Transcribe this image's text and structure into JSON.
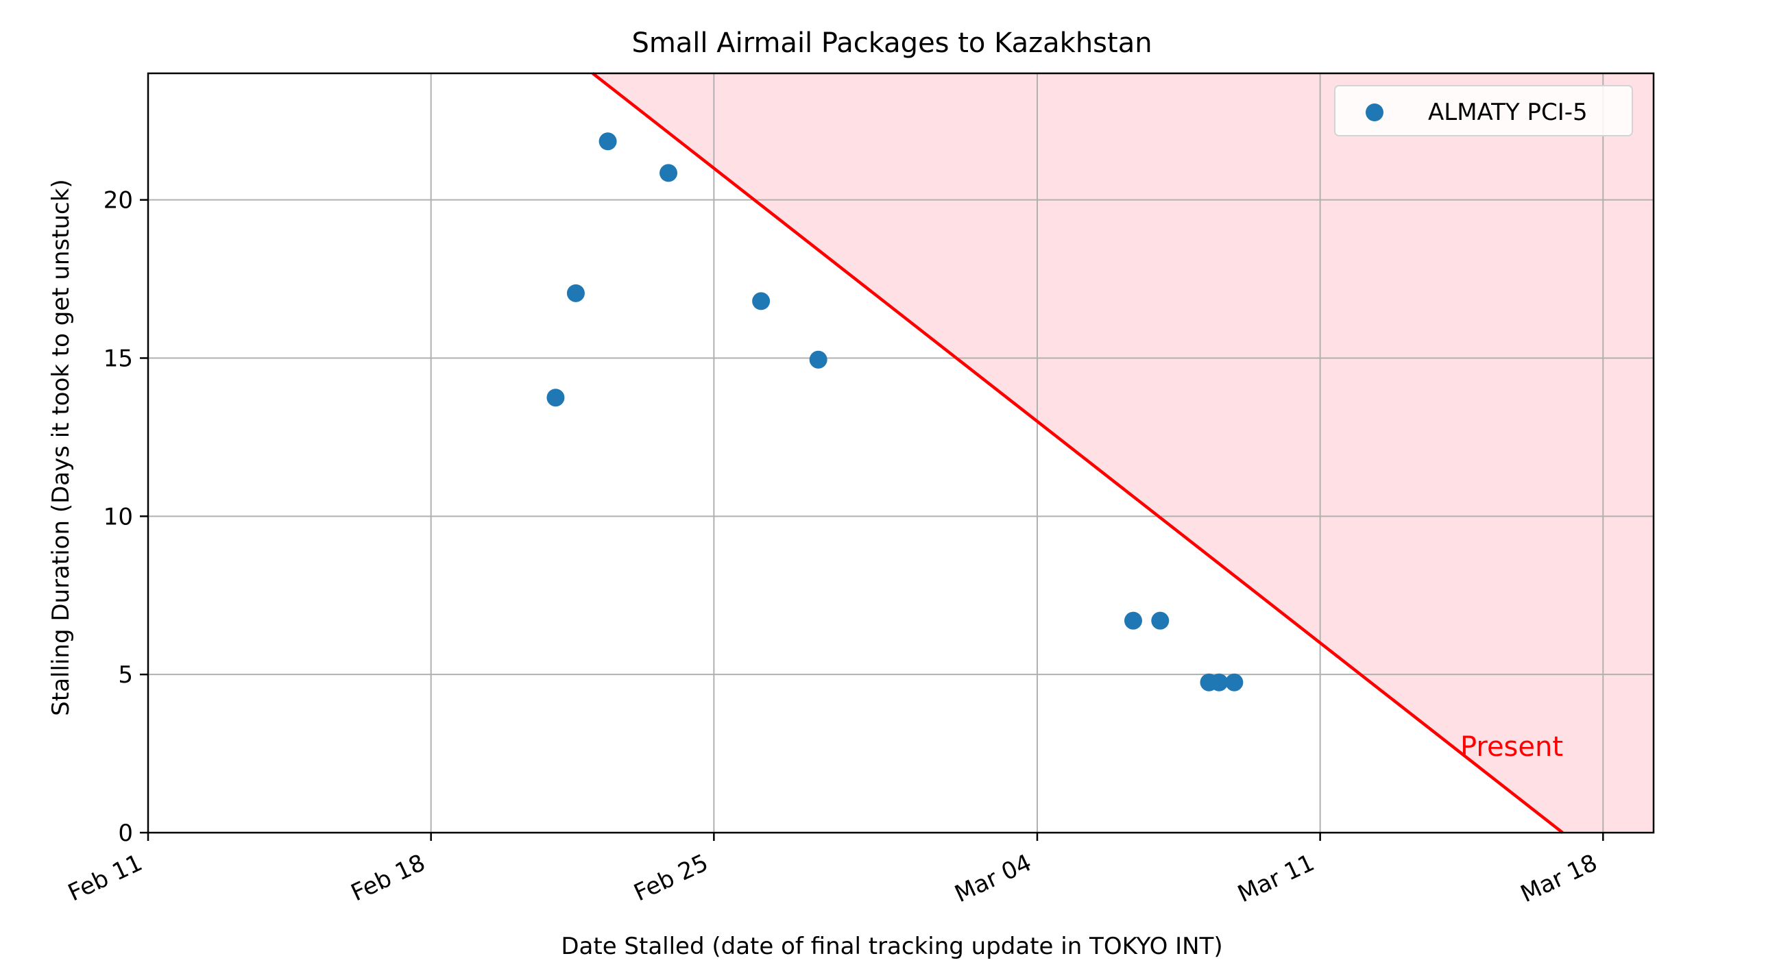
{
  "chart_data": {
    "type": "scatter",
    "title": "Small Airmail Packages to Kazakhstan",
    "xlabel": "Date Stalled (date of final tracking update in TOKYO INT)",
    "ylabel": "Stalling Duration (Days it took to get unstuck)",
    "xlim": [
      "2024-02-11",
      "2024-03-19 06:00"
    ],
    "ylim": [
      0,
      24
    ],
    "x_ticks": [
      {
        "date": "2024-02-11",
        "label": "Feb 11"
      },
      {
        "date": "2024-02-18",
        "label": "Feb 18"
      },
      {
        "date": "2024-02-25",
        "label": "Feb 25"
      },
      {
        "date": "2024-03-04",
        "label": "Mar 04"
      },
      {
        "date": "2024-03-11",
        "label": "Mar 11"
      },
      {
        "date": "2024-03-18",
        "label": "Mar 18"
      }
    ],
    "y_ticks": [
      0,
      5,
      10,
      15,
      20
    ],
    "grid": true,
    "legend_position": "upper right",
    "series": [
      {
        "name": "ALMATY PCI-5",
        "color": "#1f77b4",
        "points": [
          {
            "x": "2024-02-21 02:00",
            "y": 13.75
          },
          {
            "x": "2024-02-21 14:00",
            "y": 17.05
          },
          {
            "x": "2024-02-22 09:00",
            "y": 21.85
          },
          {
            "x": "2024-02-23 21:00",
            "y": 20.85
          },
          {
            "x": "2024-02-26 04:00",
            "y": 16.8
          },
          {
            "x": "2024-02-27 14:00",
            "y": 14.95
          },
          {
            "x": "2024-03-06 09:00",
            "y": 6.7
          },
          {
            "x": "2024-03-07 01:00",
            "y": 6.7
          },
          {
            "x": "2024-03-08 06:00",
            "y": 4.75
          },
          {
            "x": "2024-03-08 12:00",
            "y": 4.75
          },
          {
            "x": "2024-03-08 21:00",
            "y": 4.75
          }
        ]
      }
    ],
    "present_line": {
      "label": "Present",
      "color": "#ff0000",
      "fill_color": "#ffe1e5",
      "present_date": "2024-03-17 00:00",
      "description_note": ""
    }
  }
}
